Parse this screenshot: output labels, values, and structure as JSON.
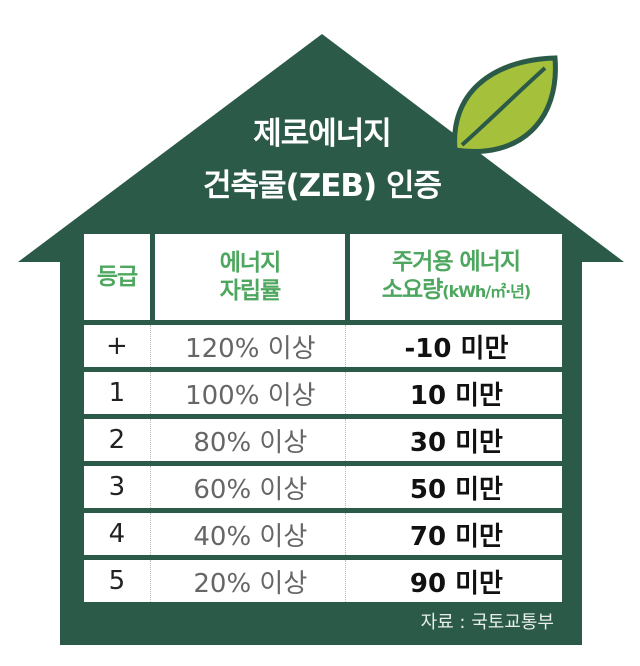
{
  "title": {
    "line1": "제로에너지",
    "line2": "건축물(ZEB) 인증"
  },
  "colors": {
    "house": "#2c5a49",
    "leaf": "#a5c03a",
    "header_text": "#4ea75f"
  },
  "icons": {
    "leaf": "leaf-icon"
  },
  "table": {
    "headers": {
      "grade": "등급",
      "ratio_line1": "에너지",
      "ratio_line2": "자립률",
      "usage_line1": "주거용 에너지",
      "usage_line2": "소요량",
      "usage_unit": "(kWh/㎡·년)"
    },
    "rows": [
      {
        "grade": "+",
        "ratio": "120% 이상",
        "usage": "-10 미만"
      },
      {
        "grade": "1",
        "ratio": "100% 이상",
        "usage": "10 미만"
      },
      {
        "grade": "2",
        "ratio": "80% 이상",
        "usage": "30 미만"
      },
      {
        "grade": "3",
        "ratio": "60% 이상",
        "usage": "50 미만"
      },
      {
        "grade": "4",
        "ratio": "40% 이상",
        "usage": "70 미만"
      },
      {
        "grade": "5",
        "ratio": "20% 이상",
        "usage": "90 미만"
      }
    ]
  },
  "source": "자료 : 국토교통부"
}
